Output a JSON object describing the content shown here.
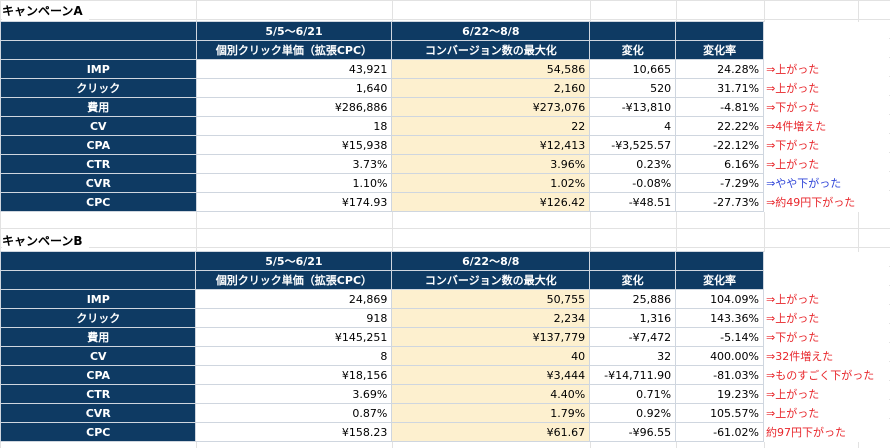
{
  "colors": {
    "header_bg": "#0e3a63",
    "highlight_bg": "#fdf0cf",
    "note_red": "#e8262b",
    "note_blue": "#2f45d8"
  },
  "campaigns": [
    {
      "title": "キャンペーンA",
      "period1_label": "5/5〜6/21",
      "period1_sub": "個別クリック単価（拡張CPC）",
      "period2_label": "6/22〜8/8",
      "period2_sub": "コンバージョン数の最大化",
      "change_label": "変化",
      "rate_label": "変化率",
      "rows": [
        {
          "label": "IMP",
          "p1": "43,921",
          "p2": "54,586",
          "change": "10,665",
          "rate": "24.28%",
          "note": "⇒上がった",
          "note_color": "red"
        },
        {
          "label": "クリック",
          "p1": "1,640",
          "p2": "2,160",
          "change": "520",
          "rate": "31.71%",
          "note": "⇒上がった",
          "note_color": "red"
        },
        {
          "label": "費用",
          "p1": "¥286,886",
          "p2": "¥273,076",
          "change": "-¥13,810",
          "rate": "-4.81%",
          "note": "⇒下がった",
          "note_color": "red"
        },
        {
          "label": "CV",
          "p1": "18",
          "p2": "22",
          "change": "4",
          "rate": "22.22%",
          "note": "⇒4件増えた",
          "note_color": "red"
        },
        {
          "label": "CPA",
          "p1": "¥15,938",
          "p2": "¥12,413",
          "change": "-¥3,525.57",
          "rate": "-22.12%",
          "note": "⇒下がった",
          "note_color": "red"
        },
        {
          "label": "CTR",
          "p1": "3.73%",
          "p2": "3.96%",
          "change": "0.23%",
          "rate": "6.16%",
          "note": "⇒上がった",
          "note_color": "red"
        },
        {
          "label": "CVR",
          "p1": "1.10%",
          "p2": "1.02%",
          "change": "-0.08%",
          "rate": "-7.29%",
          "note": "⇒やや下がった",
          "note_color": "blue"
        },
        {
          "label": "CPC",
          "p1": "¥174.93",
          "p2": "¥126.42",
          "change": "-¥48.51",
          "rate": "-27.73%",
          "note": "⇒約49円下がった",
          "note_color": "red"
        }
      ]
    },
    {
      "title": "キャンペーンB",
      "period1_label": "5/5〜6/21",
      "period1_sub": "個別クリック単価（拡張CPC）",
      "period2_label": "6/22〜8/8",
      "period2_sub": "コンバージョン数の最大化",
      "change_label": "変化",
      "rate_label": "変化率",
      "rows": [
        {
          "label": "IMP",
          "p1": "24,869",
          "p2": "50,755",
          "change": "25,886",
          "rate": "104.09%",
          "note": "⇒上がった",
          "note_color": "red"
        },
        {
          "label": "クリック",
          "p1": "918",
          "p2": "2,234",
          "change": "1,316",
          "rate": "143.36%",
          "note": "⇒上がった",
          "note_color": "red"
        },
        {
          "label": "費用",
          "p1": "¥145,251",
          "p2": "¥137,779",
          "change": "-¥7,472",
          "rate": "-5.14%",
          "note": "⇒下がった",
          "note_color": "red"
        },
        {
          "label": "CV",
          "p1": "8",
          "p2": "40",
          "change": "32",
          "rate": "400.00%",
          "note": "⇒32件増えた",
          "note_color": "red"
        },
        {
          "label": "CPA",
          "p1": "¥18,156",
          "p2": "¥3,444",
          "change": "-¥14,711.90",
          "rate": "-81.03%",
          "note": "⇒ものすごく下がった",
          "note_color": "red"
        },
        {
          "label": "CTR",
          "p1": "3.69%",
          "p2": "4.40%",
          "change": "0.71%",
          "rate": "19.23%",
          "note": "⇒上がった",
          "note_color": "red"
        },
        {
          "label": "CVR",
          "p1": "0.87%",
          "p2": "1.79%",
          "change": "0.92%",
          "rate": "105.57%",
          "note": "⇒上がった",
          "note_color": "red"
        },
        {
          "label": "CPC",
          "p1": "¥158.23",
          "p2": "¥61.67",
          "change": "-¥96.55",
          "rate": "-61.02%",
          "note": "約97円下がった",
          "note_color": "red"
        }
      ]
    }
  ]
}
